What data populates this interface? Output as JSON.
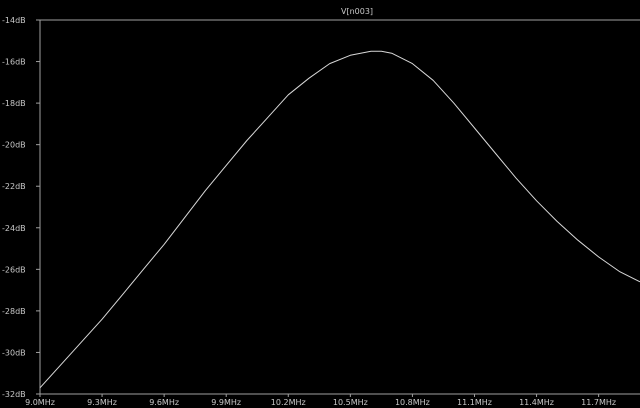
{
  "chart_data": {
    "type": "line",
    "title": "V[n003]",
    "xlabel": "",
    "ylabel": "",
    "xlim": [
      9.0,
      11.9
    ],
    "ylim": [
      -32,
      -14
    ],
    "x_ticks": [
      {
        "value": 9.0,
        "label": "9.0MHz"
      },
      {
        "value": 9.3,
        "label": "9.3MHz"
      },
      {
        "value": 9.6,
        "label": "9.6MHz"
      },
      {
        "value": 9.9,
        "label": "9.9MHz"
      },
      {
        "value": 10.2,
        "label": "10.2MHz"
      },
      {
        "value": 10.5,
        "label": "10.5MHz"
      },
      {
        "value": 10.8,
        "label": "10.8MHz"
      },
      {
        "value": 11.1,
        "label": "11.1MHz"
      },
      {
        "value": 11.4,
        "label": "11.4MHz"
      },
      {
        "value": 11.7,
        "label": "11.7MHz"
      }
    ],
    "y_ticks": [
      {
        "value": -14,
        "label": "-14dB"
      },
      {
        "value": -16,
        "label": "-16dB"
      },
      {
        "value": -18,
        "label": "-18dB"
      },
      {
        "value": -20,
        "label": "-20dB"
      },
      {
        "value": -22,
        "label": "-22dB"
      },
      {
        "value": -24,
        "label": "-24dB"
      },
      {
        "value": -26,
        "label": "-26dB"
      },
      {
        "value": -28,
        "label": "-28dB"
      },
      {
        "value": -30,
        "label": "-30dB"
      },
      {
        "value": -32,
        "label": "-32dB"
      }
    ],
    "grid": false,
    "colors": {
      "background": "#000000",
      "trace": "#d8d8d8",
      "axis": "#a0a0a0",
      "text": "#c8c8c8"
    },
    "series": [
      {
        "name": "V[n003]",
        "x": [
          9.0,
          9.1,
          9.2,
          9.3,
          9.4,
          9.5,
          9.6,
          9.7,
          9.8,
          9.9,
          10.0,
          10.1,
          10.2,
          10.3,
          10.4,
          10.5,
          10.6,
          10.65,
          10.7,
          10.8,
          10.9,
          11.0,
          11.1,
          11.2,
          11.3,
          11.4,
          11.5,
          11.6,
          11.7,
          11.8,
          11.9
        ],
        "y": [
          -31.7,
          -30.6,
          -29.5,
          -28.4,
          -27.2,
          -26.0,
          -24.8,
          -23.5,
          -22.2,
          -21.0,
          -19.8,
          -18.7,
          -17.6,
          -16.8,
          -16.1,
          -15.7,
          -15.5,
          -15.5,
          -15.6,
          -16.1,
          -16.9,
          -18.0,
          -19.2,
          -20.4,
          -21.6,
          -22.7,
          -23.7,
          -24.6,
          -25.4,
          -26.1,
          -26.6
        ]
      }
    ]
  }
}
